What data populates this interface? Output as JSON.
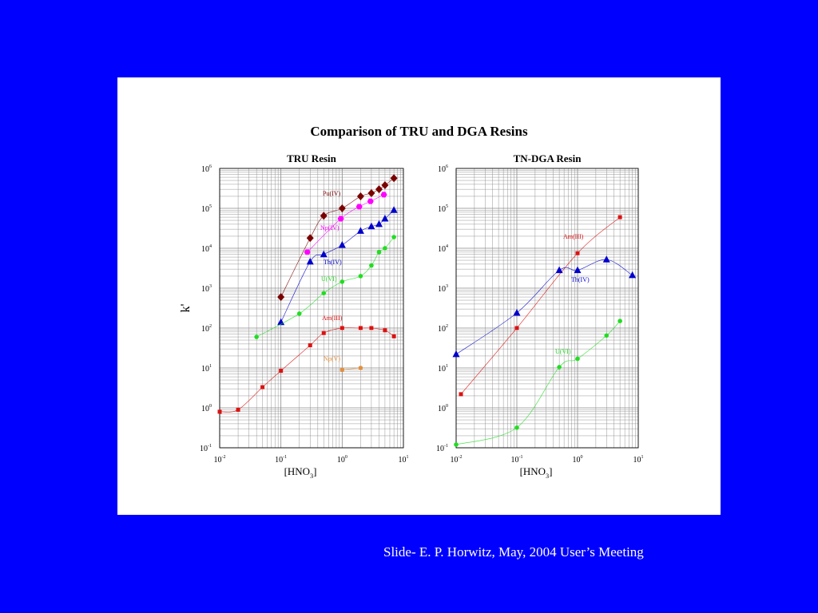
{
  "slide": {
    "title": "Comparison of TRU and DGA Resins",
    "footer": "Slide- E. P. Horwitz, May, 2004 User’s Meeting"
  },
  "colors": {
    "background": "#0000ff",
    "panel": "#ffffff",
    "Pu": "#7a0000",
    "Np": "#ff00ff",
    "Th": "#0000cc",
    "U": "#22dd22",
    "Am": "#dd1111",
    "NpV": "#e09040"
  },
  "chart_data": [
    {
      "type": "scatter",
      "title": "TRU Resin",
      "xlabel": "[HNO3]",
      "ylabel": "k'",
      "xscale": "log",
      "yscale": "log",
      "xlim": [
        0.01,
        10
      ],
      "ylim": [
        0.1,
        1000000
      ],
      "x_ticks": [
        "10-2",
        "10-1",
        "100",
        "101"
      ],
      "y_ticks": [
        "10-1",
        "100",
        "101",
        "102",
        "103",
        "104",
        "105",
        "106"
      ],
      "grid": true,
      "series": [
        {
          "name": "Pu(IV)",
          "marker": "diamond",
          "color": "#7a0000",
          "x": [
            0.1,
            0.3,
            0.5,
            1,
            2,
            3,
            4,
            5,
            7
          ],
          "y": [
            600,
            18000,
            65000,
            100000,
            200000,
            240000,
            300000,
            380000,
            570000
          ]
        },
        {
          "name": "Np(IV)",
          "marker": "hexagon",
          "color": "#ff00ff",
          "x": [
            0.27,
            0.95,
            1.9,
            2.9,
            4.8
          ],
          "y": [
            8000,
            55000,
            110000,
            150000,
            220000
          ]
        },
        {
          "name": "Th(IV)",
          "marker": "triangle",
          "color": "#0000cc",
          "x": [
            0.1,
            0.3,
            0.5,
            1,
            2,
            3,
            4,
            5,
            7
          ],
          "y": [
            140,
            4600,
            7000,
            12000,
            27000,
            35000,
            40000,
            55000,
            90000
          ]
        },
        {
          "name": "U(VI)",
          "marker": "circle",
          "color": "#22dd22",
          "x": [
            0.04,
            0.2,
            0.5,
            1,
            2,
            3,
            4,
            5,
            7
          ],
          "y": [
            60,
            230,
            750,
            1450,
            2000,
            3700,
            8000,
            10000,
            19000
          ]
        },
        {
          "name": "Am(III)",
          "marker": "square",
          "color": "#dd1111",
          "x": [
            0.01,
            0.02,
            0.05,
            0.1,
            0.3,
            0.5,
            1,
            2,
            3,
            5,
            7
          ],
          "y": [
            0.8,
            0.9,
            3.3,
            8.5,
            37,
            75,
            100,
            100,
            100,
            88,
            62
          ]
        },
        {
          "name": "Np(V)",
          "marker": "circle",
          "color": "#e09040",
          "x": [
            1,
            2
          ],
          "y": [
            9,
            10
          ]
        }
      ]
    },
    {
      "type": "scatter",
      "title": "TN-DGA Resin",
      "xlabel": "[HNO3]",
      "ylabel": "",
      "xscale": "log",
      "yscale": "log",
      "xlim": [
        0.01,
        10
      ],
      "ylim": [
        0.1,
        1000000
      ],
      "x_ticks": [
        "10-2",
        "10-1",
        "100",
        "101"
      ],
      "y_ticks": [
        "10-1",
        "100",
        "101",
        "102",
        "103",
        "104",
        "105",
        "106"
      ],
      "grid": true,
      "series": [
        {
          "name": "Am(III)",
          "marker": "square",
          "color": "#dd1111",
          "x": [
            0.012,
            0.1,
            1,
            5
          ],
          "y": [
            2.2,
            100,
            7500,
            60000
          ]
        },
        {
          "name": "Th(IV)",
          "marker": "triangle",
          "color": "#0000cc",
          "x": [
            0.01,
            0.1,
            0.5,
            1,
            3,
            8
          ],
          "y": [
            22,
            240,
            2800,
            2800,
            5200,
            2100
          ]
        },
        {
          "name": "U(VI)",
          "marker": "circle",
          "color": "#22dd22",
          "x": [
            0.01,
            0.1,
            0.5,
            1,
            3,
            5
          ],
          "y": [
            0.12,
            0.32,
            10.5,
            17,
            65,
            150
          ]
        }
      ]
    }
  ]
}
